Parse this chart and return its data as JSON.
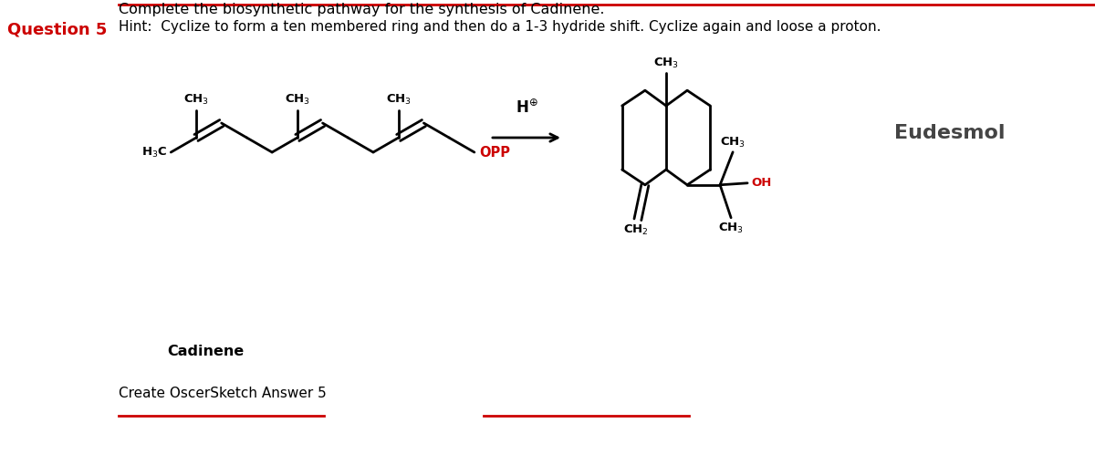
{
  "title_text": "Complete the biosynthetic pathway for the synthesis of Cadinene.",
  "hint_text": "Hint:  Cyclize to form a ten membered ring and then do a 1-3 hydride shift. Cyclize again and loose a proton.",
  "question_label": "Question 5",
  "cadinene_label": "Cadinene",
  "create_label": "Create OscerSketch Answer 5",
  "eudesmol_label": "Eudesmol",
  "bg_color": "#ffffff",
  "text_color": "#000000",
  "red_color": "#cc0000",
  "opp_color": "#cc0000",
  "oh_color": "#cc0000"
}
